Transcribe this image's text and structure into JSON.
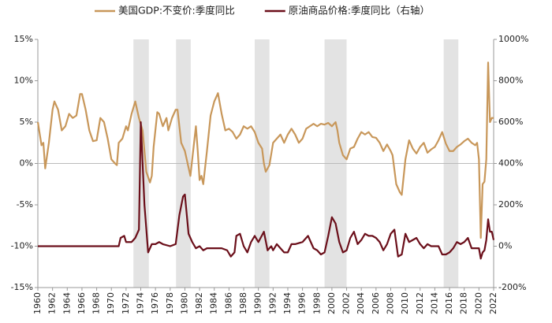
{
  "chart_data": {
    "type": "line",
    "xlim": [
      1960,
      2022
    ],
    "xticks": [
      1960,
      1962,
      1964,
      1966,
      1968,
      1970,
      1972,
      1974,
      1976,
      1978,
      1980,
      1982,
      1984,
      1986,
      1988,
      1990,
      1992,
      1994,
      1996,
      1998,
      2000,
      2002,
      2004,
      2006,
      2008,
      2010,
      2012,
      2014,
      2016,
      2018,
      2020,
      2022
    ],
    "ylim": [
      -15,
      15
    ],
    "yticks": [
      {
        "value": -15,
        "label": "-15%"
      },
      {
        "value": -10,
        "label": "-10%"
      },
      {
        "value": -5,
        "label": "-5%"
      },
      {
        "value": 0,
        "label": "0%"
      },
      {
        "value": 5,
        "label": "5%"
      },
      {
        "value": 10,
        "label": "10%"
      },
      {
        "value": 15,
        "label": "15%"
      }
    ],
    "y2lim": [
      -200,
      1000
    ],
    "y2ticks": [
      {
        "value": -200,
        "label": "-200%"
      },
      {
        "value": 0,
        "label": "0%"
      },
      {
        "value": 200,
        "label": "200%"
      },
      {
        "value": 400,
        "label": "400%"
      },
      {
        "value": 600,
        "label": "600%"
      },
      {
        "value": 800,
        "label": "800%"
      },
      {
        "value": 1000,
        "label": "1000%"
      }
    ],
    "shaded_periods": [
      [
        1973.0,
        1975.1
      ],
      [
        1978.8,
        1980.8
      ],
      [
        1989.5,
        1991.5
      ],
      [
        1999.0,
        2002.0
      ],
      [
        2015.2,
        2017.2
      ]
    ],
    "shade_color": "#e3e3e3",
    "series": [
      {
        "name": "美国GDP:不变价:季度同比",
        "color": "#c8975a",
        "axis": "y",
        "x": [
          1960,
          1960.5,
          1960.75,
          1961,
          1961.5,
          1962,
          1962.25,
          1962.75,
          1963.25,
          1963.75,
          1964.25,
          1964.75,
          1965.25,
          1965.75,
          1966,
          1966.5,
          1967,
          1967.5,
          1968,
          1968.5,
          1969,
          1969.5,
          1970,
          1970.5,
          1970.75,
          1971,
          1971.5,
          1972,
          1972.25,
          1972.75,
          1973.25,
          1973.75,
          1974.25,
          1974.75,
          1975.25,
          1975.5,
          1975.75,
          1976.25,
          1976.5,
          1977,
          1977.5,
          1977.75,
          1978.25,
          1978.75,
          1979,
          1979.5,
          1980,
          1980.5,
          1980.75,
          1981.25,
          1981.5,
          1981.75,
          1982,
          1982.25,
          1982.5,
          1983,
          1983.5,
          1984,
          1984.5,
          1985,
          1985.5,
          1986,
          1986.5,
          1987,
          1987.5,
          1988,
          1988.5,
          1989,
          1989.5,
          1990,
          1990.5,
          1990.75,
          1991,
          1991.5,
          1992,
          1992.5,
          1993,
          1993.5,
          1994,
          1994.5,
          1995,
          1995.5,
          1996,
          1996.5,
          1997,
          1997.5,
          1998,
          1998.5,
          1999,
          1999.5,
          2000,
          2000.5,
          2000.75,
          2001,
          2001.5,
          2002,
          2002.5,
          2003,
          2003.5,
          2004,
          2004.5,
          2005,
          2005.5,
          2006,
          2006.5,
          2007,
          2007.5,
          2008,
          2008.25,
          2008.75,
          2009.25,
          2009.5,
          2010,
          2010.5,
          2011,
          2011.5,
          2012,
          2012.5,
          2013,
          2013.5,
          2014,
          2014.5,
          2015,
          2015.5,
          2016,
          2016.5,
          2017,
          2017.5,
          2018,
          2018.5,
          2019,
          2019.5,
          2019.75,
          2020,
          2020.25,
          2020.5,
          2020.75,
          2021,
          2021.25,
          2021.5,
          2021.75,
          2022
        ],
        "values": [
          5,
          2.2,
          2.5,
          -0.6,
          2.5,
          6.5,
          7.5,
          6.5,
          4,
          4.5,
          6,
          5.5,
          5.8,
          8.4,
          8.4,
          6.5,
          4,
          2.7,
          2.8,
          5.5,
          5,
          3,
          0.5,
          0,
          -0.2,
          2.5,
          3,
          4.5,
          4,
          6,
          7.5,
          5.5,
          4,
          -1,
          -2.3,
          -1.5,
          2,
          6.2,
          6,
          4.5,
          5.5,
          4,
          5.5,
          6.5,
          6.5,
          2.5,
          1.5,
          -0.5,
          -1.5,
          2.5,
          4.5,
          1.5,
          -2,
          -1.5,
          -2.5,
          1.5,
          5.8,
          7.5,
          8.5,
          6,
          4,
          4.2,
          3.8,
          3,
          3.5,
          4.5,
          4.2,
          4.5,
          3.8,
          2.5,
          1.8,
          0,
          -1,
          -0.2,
          2.5,
          3,
          3.5,
          2.5,
          3.5,
          4.2,
          3.5,
          2.5,
          3,
          4.2,
          4.5,
          4.8,
          4.5,
          4.8,
          4.7,
          4.9,
          4.5,
          5,
          4,
          2.5,
          1,
          0.5,
          1.8,
          2,
          3,
          3.8,
          3.5,
          3.8,
          3.2,
          3.1,
          2.5,
          1.5,
          2.3,
          1.5,
          1,
          -2.5,
          -3.5,
          -3.8,
          0.5,
          2.8,
          1.8,
          1.2,
          2,
          2.5,
          1.3,
          1.7,
          2,
          2.8,
          3.8,
          2.4,
          1.5,
          1.5,
          2,
          2.3,
          2.7,
          3,
          2.5,
          2.2,
          2.5,
          0.5,
          -9,
          -2.5,
          -2.2,
          0.5,
          12.2,
          5,
          5.5,
          5.5
        ]
      },
      {
        "name": "原油商品价格:季度同比（右轴）",
        "color": "#6b0f1a",
        "axis": "y2",
        "x": [
          1960,
          1965,
          1970,
          1971,
          1971.25,
          1971.75,
          1972,
          1972.75,
          1973.25,
          1973.75,
          1974,
          1974.25,
          1974.5,
          1975,
          1975.5,
          1976,
          1976.5,
          1977,
          1978,
          1978.75,
          1979.25,
          1979.75,
          1980,
          1980.5,
          1981,
          1981.5,
          1982,
          1982.5,
          1983,
          1984,
          1985,
          1985.75,
          1986.25,
          1986.75,
          1987,
          1987.5,
          1988,
          1988.5,
          1989,
          1989.5,
          1990,
          1990.75,
          1991.25,
          1991.75,
          1992,
          1992.5,
          1993,
          1993.5,
          1994,
          1994.5,
          1995,
          1996,
          1996.75,
          1997.5,
          1998,
          1998.5,
          1999,
          1999.5,
          2000,
          2000.5,
          2001,
          2001.5,
          2002,
          2002.5,
          2003,
          2003.5,
          2004,
          2004.5,
          2005,
          2005.5,
          2006,
          2006.5,
          2007,
          2007.5,
          2008,
          2008.5,
          2009,
          2009.5,
          2010,
          2010.5,
          2011,
          2011.5,
          2012,
          2012.5,
          2013,
          2013.5,
          2014,
          2014.5,
          2015,
          2015.5,
          2016,
          2016.5,
          2017,
          2017.5,
          2018,
          2018.5,
          2019,
          2019.5,
          2020,
          2020.25,
          2020.5,
          2020.75,
          2021,
          2021.25,
          2021.5,
          2021.75,
          2022
        ],
        "values": [
          0,
          0,
          0,
          0,
          40,
          50,
          20,
          20,
          40,
          80,
          600,
          400,
          200,
          -30,
          10,
          10,
          20,
          10,
          0,
          10,
          150,
          240,
          250,
          60,
          20,
          -10,
          0,
          -20,
          -10,
          -10,
          -10,
          -20,
          -50,
          -30,
          50,
          60,
          0,
          -30,
          20,
          50,
          20,
          70,
          -20,
          0,
          -20,
          10,
          -10,
          -30,
          -30,
          10,
          10,
          20,
          50,
          -10,
          -20,
          -40,
          -30,
          50,
          140,
          110,
          20,
          -30,
          -20,
          40,
          70,
          10,
          30,
          60,
          50,
          50,
          40,
          20,
          -20,
          10,
          60,
          80,
          -50,
          -40,
          60,
          20,
          30,
          40,
          10,
          -10,
          10,
          0,
          0,
          0,
          -40,
          -40,
          -30,
          -10,
          20,
          10,
          20,
          40,
          -10,
          -10,
          -10,
          -60,
          -30,
          -20,
          30,
          130,
          70,
          70,
          30
        ]
      }
    ]
  }
}
